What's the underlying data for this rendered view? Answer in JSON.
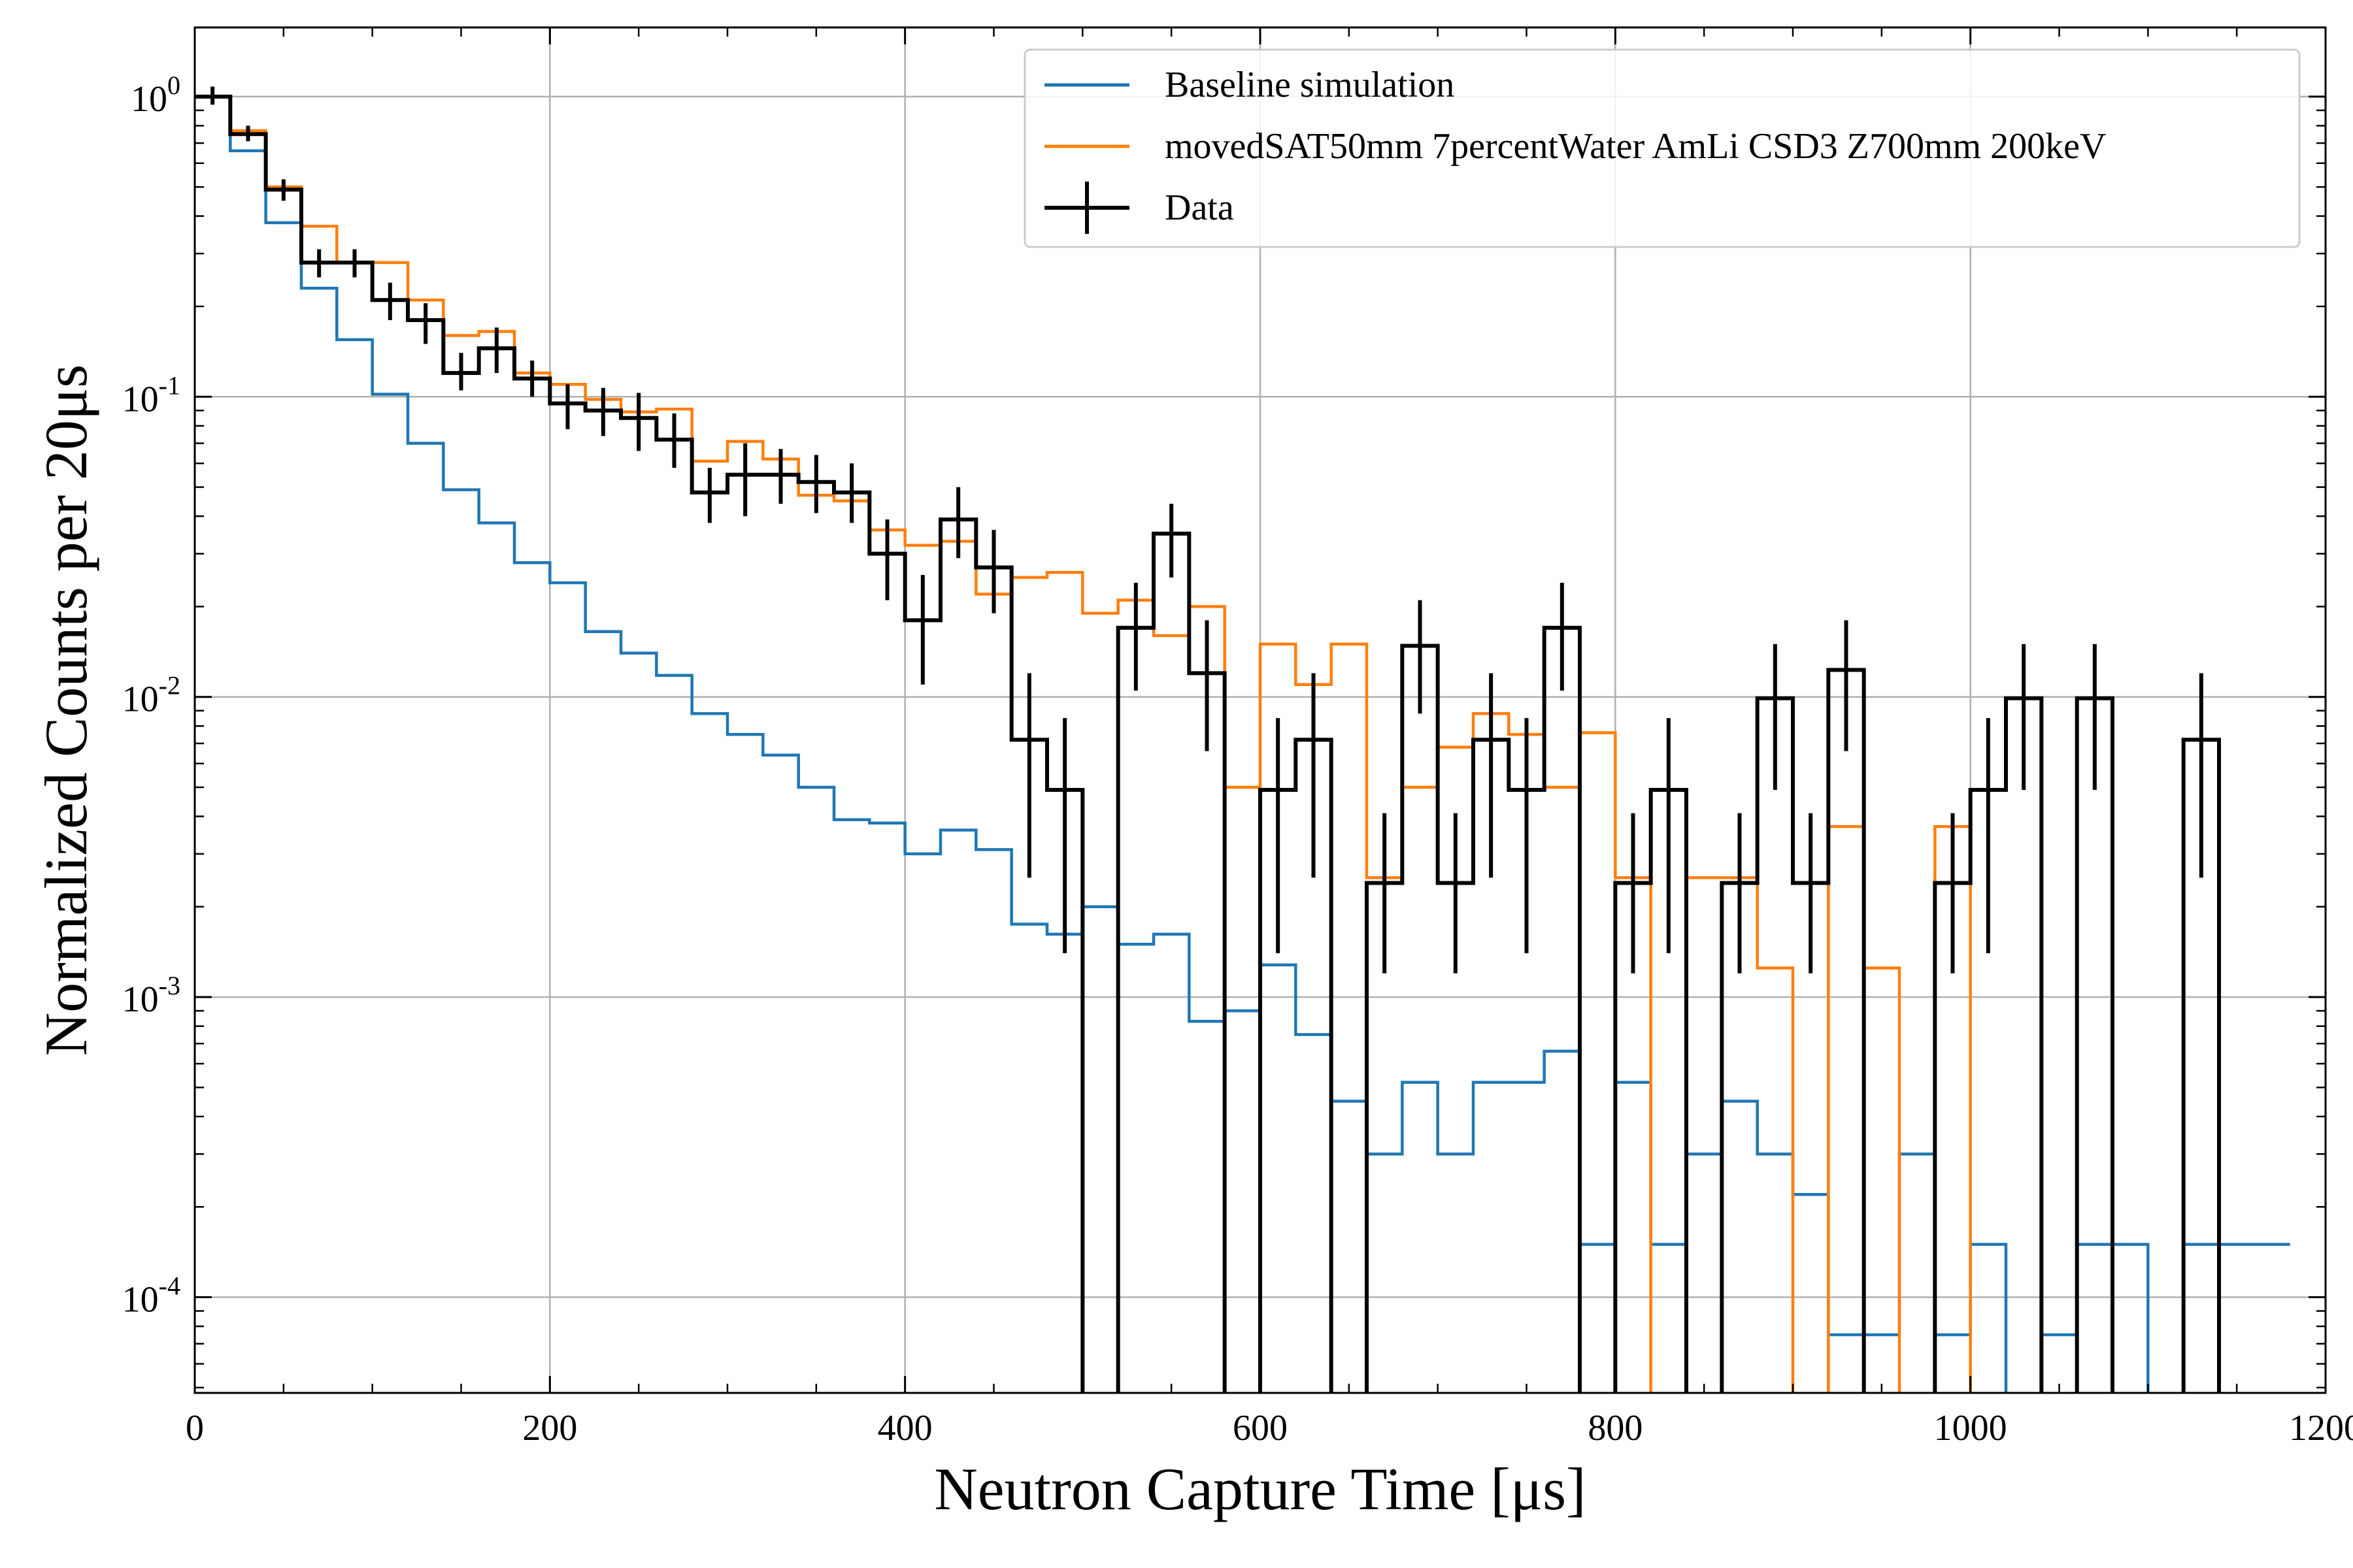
{
  "chart_data": {
    "type": "line",
    "xlabel": "Neutron Capture Time [μs]",
    "ylabel": "Normalized Counts per 20μs",
    "xlim": [
      0,
      1200
    ],
    "ylim": [
      4.8e-05,
      1.7
    ],
    "yscale": "log",
    "grid": true,
    "legend_position": "top-right",
    "x_ticks": [
      {
        "value": 0,
        "label": "0"
      },
      {
        "value": 200,
        "label": "200"
      },
      {
        "value": 400,
        "label": "400"
      },
      {
        "value": 600,
        "label": "600"
      },
      {
        "value": 800,
        "label": "800"
      },
      {
        "value": 1000,
        "label": "1000"
      },
      {
        "value": 1200,
        "label": "1200"
      }
    ],
    "y_ticks": [
      {
        "value": 1,
        "base": "10",
        "exp": "0"
      },
      {
        "value": 0.1,
        "base": "10",
        "exp": "-1"
      },
      {
        "value": 0.01,
        "base": "10",
        "exp": "-2"
      },
      {
        "value": 0.001,
        "base": "10",
        "exp": "-3"
      },
      {
        "value": 0.0001,
        "base": "10",
        "exp": "-4"
      }
    ],
    "bin_width": 20,
    "series": [
      {
        "name": "Baseline simulation",
        "style": "step",
        "color": "#1f77b4",
        "x_start": 0,
        "values": [
          1.0,
          0.66,
          0.38,
          0.23,
          0.155,
          0.102,
          0.07,
          0.049,
          0.038,
          0.028,
          0.024,
          0.0165,
          0.014,
          0.0118,
          0.0088,
          0.0075,
          0.0064,
          0.005,
          0.0039,
          0.0038,
          0.003,
          0.0036,
          0.0031,
          0.00175,
          0.00162,
          0.002,
          0.0015,
          0.00162,
          0.00083,
          0.0009,
          0.00128,
          0.00075,
          0.00045,
          0.0003,
          0.00052,
          0.0003,
          0.00052,
          0.00052,
          0.00066,
          0.00015,
          0.00052,
          0.00015,
          0.0003,
          0.00045,
          0.0003,
          0.00022,
          7.5e-05,
          7.5e-05,
          0.0003,
          7.5e-05,
          0.00015,
          null,
          7.5e-05,
          0.00015,
          0.00015,
          4.5e-05,
          0.00015,
          0.00015,
          0.00015
        ]
      },
      {
        "name": "movedSAT50mm 7percentWater AmLi CSD3 Z700mm 200keV",
        "style": "step",
        "color": "#ff7f0e",
        "x_start": 0,
        "values": [
          1.0,
          0.77,
          0.5,
          0.37,
          0.28,
          0.28,
          0.21,
          0.16,
          0.165,
          0.12,
          0.11,
          0.098,
          0.089,
          0.091,
          0.061,
          0.071,
          0.062,
          0.047,
          0.045,
          0.036,
          0.032,
          0.033,
          0.022,
          0.025,
          0.026,
          0.019,
          0.021,
          0.016,
          0.02,
          0.005,
          0.015,
          0.011,
          0.015,
          0.0025,
          0.005,
          0.0068,
          0.0088,
          0.0075,
          0.005,
          0.0076,
          0.0025,
          null,
          0.0025,
          0.0025,
          0.00125,
          null,
          0.0037,
          0.00125,
          null,
          0.0037,
          null,
          null,
          null,
          null,
          null,
          null,
          null,
          null,
          null
        ]
      },
      {
        "name": "Data",
        "style": "step-errorbar",
        "color": "#000000",
        "x_start": 0,
        "values": [
          1.0,
          0.75,
          0.49,
          0.28,
          0.28,
          0.21,
          0.18,
          0.12,
          0.145,
          0.115,
          0.095,
          0.09,
          0.085,
          0.072,
          0.048,
          0.055,
          0.055,
          0.052,
          0.048,
          0.03,
          0.018,
          0.039,
          0.027,
          0.0072,
          0.0049,
          null,
          0.017,
          0.035,
          0.012,
          null,
          0.0049,
          0.0072,
          null,
          0.0024,
          0.0148,
          0.0024,
          0.0072,
          0.0049,
          0.017,
          null,
          0.0024,
          0.0049,
          null,
          0.0024,
          0.0099,
          0.0024,
          0.0123,
          null,
          null,
          0.0024,
          0.0049,
          0.0099,
          null,
          0.0099,
          null,
          null,
          0.0072,
          null,
          null
        ],
        "errors_low": [
          0.94,
          0.71,
          0.45,
          0.25,
          0.25,
          0.18,
          0.15,
          0.105,
          0.12,
          0.1,
          0.078,
          0.074,
          0.066,
          0.058,
          0.038,
          0.04,
          0.044,
          0.041,
          0.038,
          0.021,
          0.011,
          0.029,
          0.019,
          0.0025,
          0.0014,
          null,
          0.0105,
          0.025,
          0.0066,
          null,
          0.0014,
          0.0025,
          null,
          0.0012,
          0.0088,
          0.0012,
          0.0025,
          0.0014,
          0.0105,
          null,
          0.0012,
          0.0014,
          null,
          0.0012,
          0.0049,
          0.0012,
          0.0066,
          null,
          null,
          0.0012,
          0.0014,
          0.0049,
          null,
          0.0049,
          null,
          null,
          0.0025,
          null,
          null
        ],
        "errors_high": [
          1.08,
          0.8,
          0.53,
          0.31,
          0.31,
          0.24,
          0.205,
          0.14,
          0.17,
          0.132,
          0.11,
          0.107,
          0.103,
          0.088,
          0.058,
          0.07,
          0.067,
          0.064,
          0.06,
          0.039,
          0.0255,
          0.05,
          0.036,
          0.012,
          0.0085,
          null,
          0.024,
          0.044,
          0.018,
          null,
          0.0085,
          0.012,
          null,
          0.0041,
          0.021,
          0.0041,
          0.012,
          0.0085,
          0.024,
          null,
          0.0041,
          0.0085,
          null,
          0.0041,
          0.015,
          0.0041,
          0.018,
          null,
          null,
          0.0041,
          0.0085,
          0.015,
          null,
          0.015,
          null,
          null,
          0.012,
          null,
          null
        ]
      }
    ]
  }
}
